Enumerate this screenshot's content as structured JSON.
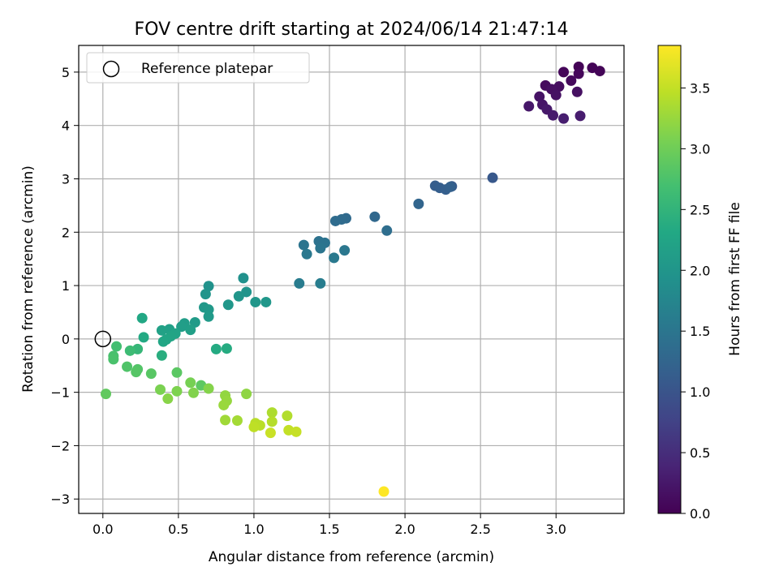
{
  "chart_data": {
    "type": "scatter",
    "title": "FOV centre drift starting at 2024/06/14 21:47:14",
    "xlabel": "Angular distance from reference (arcmin)",
    "ylabel": "Rotation from reference (arcmin)",
    "xlim": [
      -0.16,
      3.45
    ],
    "ylim": [
      -3.27,
      5.5
    ],
    "x_ticks": [
      "0.0",
      "0.5",
      "1.0",
      "1.5",
      "2.0",
      "2.5",
      "3.0"
    ],
    "y_ticks": [
      "−3",
      "−2",
      "−1",
      "0",
      "1",
      "2",
      "3",
      "4",
      "5"
    ],
    "grid": true,
    "legend": {
      "position": "top-left",
      "entries": [
        "Reference platepar"
      ]
    },
    "colorbar": {
      "label": "Hours from first FF file",
      "range": [
        0.0,
        3.85
      ],
      "colormap": "viridis",
      "ticks": [
        "0.0",
        "0.5",
        "1.0",
        "1.5",
        "2.0",
        "2.5",
        "3.0",
        "3.5"
      ]
    },
    "reference_point": {
      "x": 0.0,
      "y": 0.0
    },
    "points": [
      {
        "x": 3.15,
        "y": 5.1,
        "t": 0.02
      },
      {
        "x": 3.24,
        "y": 5.08,
        "t": 0.03
      },
      {
        "x": 3.29,
        "y": 5.02,
        "t": 0.04
      },
      {
        "x": 3.05,
        "y": 5.0,
        "t": 0.06
      },
      {
        "x": 3.15,
        "y": 4.97,
        "t": 0.07
      },
      {
        "x": 3.1,
        "y": 4.84,
        "t": 0.09
      },
      {
        "x": 2.93,
        "y": 4.75,
        "t": 0.11
      },
      {
        "x": 3.02,
        "y": 4.73,
        "t": 0.13
      },
      {
        "x": 2.97,
        "y": 4.68,
        "t": 0.15
      },
      {
        "x": 3.14,
        "y": 4.63,
        "t": 0.16
      },
      {
        "x": 3.0,
        "y": 4.57,
        "t": 0.18
      },
      {
        "x": 2.89,
        "y": 4.54,
        "t": 0.2
      },
      {
        "x": 2.91,
        "y": 4.39,
        "t": 0.22
      },
      {
        "x": 2.82,
        "y": 4.36,
        "t": 0.24
      },
      {
        "x": 2.94,
        "y": 4.3,
        "t": 0.26
      },
      {
        "x": 2.98,
        "y": 4.19,
        "t": 0.28
      },
      {
        "x": 3.16,
        "y": 4.18,
        "t": 0.3
      },
      {
        "x": 3.05,
        "y": 4.13,
        "t": 0.32
      },
      {
        "x": 2.58,
        "y": 3.02,
        "t": 1.05
      },
      {
        "x": 2.31,
        "y": 2.86,
        "t": 1.1
      },
      {
        "x": 2.2,
        "y": 2.87,
        "t": 1.12
      },
      {
        "x": 2.23,
        "y": 2.83,
        "t": 1.14
      },
      {
        "x": 2.27,
        "y": 2.8,
        "t": 1.16
      },
      {
        "x": 2.3,
        "y": 2.85,
        "t": 1.18
      },
      {
        "x": 2.09,
        "y": 2.53,
        "t": 1.25
      },
      {
        "x": 1.8,
        "y": 2.29,
        "t": 1.3
      },
      {
        "x": 1.61,
        "y": 2.26,
        "t": 1.32
      },
      {
        "x": 1.58,
        "y": 2.24,
        "t": 1.34
      },
      {
        "x": 1.54,
        "y": 2.21,
        "t": 1.36
      },
      {
        "x": 1.88,
        "y": 2.03,
        "t": 1.38
      },
      {
        "x": 1.43,
        "y": 1.83,
        "t": 1.45
      },
      {
        "x": 1.47,
        "y": 1.8,
        "t": 1.47
      },
      {
        "x": 1.33,
        "y": 1.76,
        "t": 1.48
      },
      {
        "x": 1.44,
        "y": 1.7,
        "t": 1.5
      },
      {
        "x": 1.6,
        "y": 1.66,
        "t": 1.52
      },
      {
        "x": 1.35,
        "y": 1.59,
        "t": 1.54
      },
      {
        "x": 1.53,
        "y": 1.52,
        "t": 1.56
      },
      {
        "x": 1.3,
        "y": 1.04,
        "t": 1.6
      },
      {
        "x": 1.44,
        "y": 1.04,
        "t": 1.62
      },
      {
        "x": 0.93,
        "y": 1.14,
        "t": 1.92
      },
      {
        "x": 0.7,
        "y": 0.99,
        "t": 1.95
      },
      {
        "x": 0.68,
        "y": 0.84,
        "t": 1.97
      },
      {
        "x": 0.95,
        "y": 0.88,
        "t": 1.98
      },
      {
        "x": 0.9,
        "y": 0.8,
        "t": 2.0
      },
      {
        "x": 1.01,
        "y": 0.69,
        "t": 2.01
      },
      {
        "x": 1.08,
        "y": 0.69,
        "t": 2.02
      },
      {
        "x": 0.83,
        "y": 0.64,
        "t": 2.03
      },
      {
        "x": 0.67,
        "y": 0.59,
        "t": 2.05
      },
      {
        "x": 0.7,
        "y": 0.55,
        "t": 2.06
      },
      {
        "x": 0.7,
        "y": 0.42,
        "t": 2.07
      },
      {
        "x": 0.61,
        "y": 0.31,
        "t": 2.1
      },
      {
        "x": 0.54,
        "y": 0.29,
        "t": 2.12
      },
      {
        "x": 0.52,
        "y": 0.23,
        "t": 2.14
      },
      {
        "x": 0.58,
        "y": 0.17,
        "t": 2.16
      },
      {
        "x": 0.44,
        "y": 0.18,
        "t": 2.18
      },
      {
        "x": 0.39,
        "y": 0.16,
        "t": 2.2
      },
      {
        "x": 0.48,
        "y": 0.1,
        "t": 2.22
      },
      {
        "x": 0.45,
        "y": 0.05,
        "t": 2.24
      },
      {
        "x": 0.42,
        "y": -0.01,
        "t": 2.26
      },
      {
        "x": 0.4,
        "y": -0.05,
        "t": 2.28
      },
      {
        "x": 0.26,
        "y": 0.39,
        "t": 2.3
      },
      {
        "x": 0.27,
        "y": 0.03,
        "t": 2.32
      },
      {
        "x": 0.75,
        "y": -0.19,
        "t": 2.34
      },
      {
        "x": 0.82,
        "y": -0.18,
        "t": 2.36
      },
      {
        "x": 0.39,
        "y": -0.31,
        "t": 2.4
      },
      {
        "x": 0.23,
        "y": -0.19,
        "t": 2.55
      },
      {
        "x": 0.18,
        "y": -0.22,
        "t": 2.62
      },
      {
        "x": 0.09,
        "y": -0.14,
        "t": 2.68
      },
      {
        "x": 0.07,
        "y": -0.32,
        "t": 2.72
      },
      {
        "x": 0.07,
        "y": -0.38,
        "t": 2.74
      },
      {
        "x": 0.16,
        "y": -0.52,
        "t": 2.78
      },
      {
        "x": 0.23,
        "y": -0.57,
        "t": 2.8
      },
      {
        "x": 0.22,
        "y": -0.62,
        "t": 2.82
      },
      {
        "x": 0.32,
        "y": -0.65,
        "t": 2.84
      },
      {
        "x": 0.49,
        "y": -0.63,
        "t": 2.86
      },
      {
        "x": 0.65,
        "y": -0.87,
        "t": 2.88
      },
      {
        "x": 0.02,
        "y": -1.03,
        "t": 2.9
      },
      {
        "x": 0.58,
        "y": -0.82,
        "t": 3.05
      },
      {
        "x": 0.38,
        "y": -0.95,
        "t": 3.08
      },
      {
        "x": 0.49,
        "y": -0.98,
        "t": 3.1
      },
      {
        "x": 0.6,
        "y": -1.01,
        "t": 3.12
      },
      {
        "x": 0.7,
        "y": -0.93,
        "t": 3.14
      },
      {
        "x": 0.43,
        "y": -1.12,
        "t": 3.16
      },
      {
        "x": 0.95,
        "y": -1.03,
        "t": 3.2
      },
      {
        "x": 0.81,
        "y": -1.06,
        "t": 3.22
      },
      {
        "x": 0.82,
        "y": -1.16,
        "t": 3.24
      },
      {
        "x": 0.8,
        "y": -1.24,
        "t": 3.26
      },
      {
        "x": 0.81,
        "y": -1.52,
        "t": 3.3
      },
      {
        "x": 0.89,
        "y": -1.53,
        "t": 3.32
      },
      {
        "x": 1.12,
        "y": -1.38,
        "t": 3.38
      },
      {
        "x": 1.22,
        "y": -1.44,
        "t": 3.4
      },
      {
        "x": 1.12,
        "y": -1.55,
        "t": 3.42
      },
      {
        "x": 1.01,
        "y": -1.58,
        "t": 3.44
      },
      {
        "x": 1.04,
        "y": -1.62,
        "t": 3.45
      },
      {
        "x": 1.0,
        "y": -1.65,
        "t": 3.47
      },
      {
        "x": 1.23,
        "y": -1.71,
        "t": 3.5
      },
      {
        "x": 1.28,
        "y": -1.74,
        "t": 3.52
      },
      {
        "x": 1.11,
        "y": -1.76,
        "t": 3.54
      },
      {
        "x": 1.86,
        "y": -2.86,
        "t": 3.85
      }
    ]
  }
}
